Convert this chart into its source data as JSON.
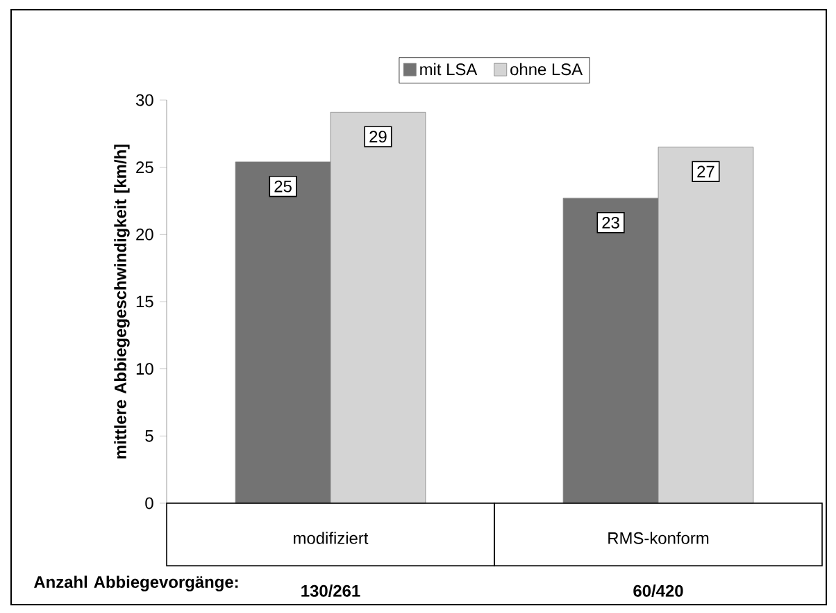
{
  "chart_data": {
    "type": "bar",
    "ylabel": "mittlere Abbiegegeschwindigkeit [km/h]",
    "categories": [
      "modifiziert",
      "RMS-konform"
    ],
    "series": [
      {
        "name": "mit LSA",
        "color": "#737373",
        "values": [
          25.4,
          22.7
        ],
        "value_labels": [
          "25",
          "23"
        ]
      },
      {
        "name": "ohne LSA",
        "color": "#d4d4d4",
        "values": [
          29.1,
          26.5
        ],
        "value_labels": [
          "29",
          "27"
        ]
      }
    ],
    "ylim": [
      0,
      30
    ],
    "yticks": [
      0,
      5,
      10,
      15,
      20,
      25,
      30
    ],
    "legend": "top",
    "annotations": [
      "Anzahl Abbiegevorgänge:",
      "130/261",
      "60/420"
    ]
  }
}
